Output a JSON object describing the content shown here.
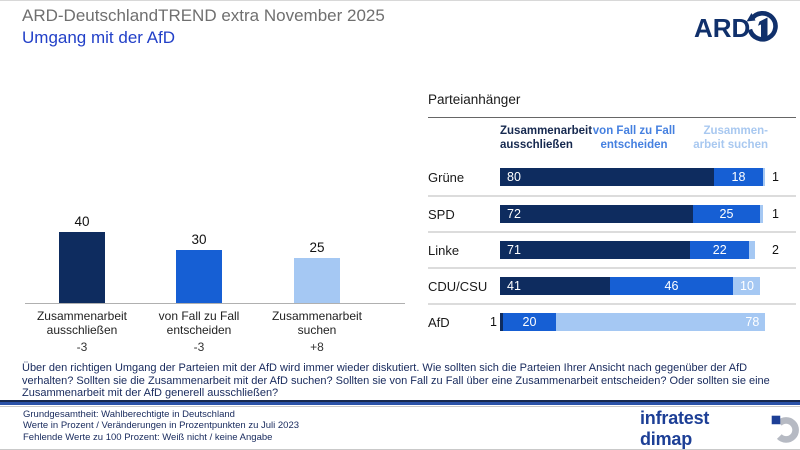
{
  "header": {
    "title": "ARD-DeutschlandTREND extra November 2025",
    "subtitle": "Umgang mit der AfD",
    "ard_logo_text": "ARD"
  },
  "colors": {
    "navy": "#0e2c5f",
    "blue": "#165fd4",
    "light_blue": "#a5c8f3",
    "hdr_navy_text": "#16294f",
    "hdr_blue_text": "#4580e0",
    "hdr_light_text": "#a8c8f0",
    "title_gray": "#6f6f6f",
    "subtitle_blue": "#2240c8",
    "text_navy": "#17295c",
    "brand_blue": "#1d3f96"
  },
  "chart_data": [
    {
      "type": "bar",
      "orientation": "vertical",
      "categories": [
        "Zusammenarbeit\nausschließen",
        "von Fall zu Fall\nentscheiden",
        "Zusammenarbeit\nsuchen"
      ],
      "values": [
        40,
        30,
        25
      ],
      "changes": [
        "-3",
        "-3",
        "+8"
      ],
      "bar_colors": [
        "#0e2c5f",
        "#165fd4",
        "#a5c8f3"
      ],
      "ylim": [
        0,
        45
      ],
      "grid": false,
      "legend": "none"
    },
    {
      "type": "bar",
      "orientation": "horizontal-stacked",
      "title": "Parteianhänger",
      "categories": [
        "Grüne",
        "SPD",
        "Linke",
        "CDU/CSU",
        "AfD"
      ],
      "series": [
        {
          "name": "Zusammenarbeit\nausschließen",
          "color": "#0e2c5f",
          "values": [
            80,
            72,
            71,
            41,
            1
          ]
        },
        {
          "name": "von Fall zu Fall\nentscheiden",
          "color": "#165fd4",
          "values": [
            18,
            25,
            22,
            46,
            20
          ]
        },
        {
          "name": "Zusammen-\narbeit suchen",
          "color": "#a5c8f3",
          "values": [
            1,
            1,
            2,
            10,
            78
          ]
        }
      ],
      "xlim": [
        0,
        100
      ],
      "legend": "column-headers-top"
    }
  ],
  "question": "Über den richtigen Umgang der Parteien mit der AfD wird immer wieder diskutiert. Wie sollten sich die Parteien Ihrer Ansicht nach gegenüber der AfD verhalten? Sollten sie die Zusammenarbeit mit der AfD suchen? Sollten sie von Fall zu Fall über eine Zusammenarbeit entscheiden? Oder sollten sie eine Zusammenarbeit mit der AfD generell ausschließen?",
  "footer": {
    "line1": "Grundgesamtheit: Wahlberechtigte in Deutschland",
    "line2": "Werte in Prozent / Veränderungen in Prozentpunkten zu Juli 2023",
    "line3": "Fehlende Werte zu 100 Prozent: Weiß nicht / keine Angabe",
    "brand": "infratest dimap"
  }
}
